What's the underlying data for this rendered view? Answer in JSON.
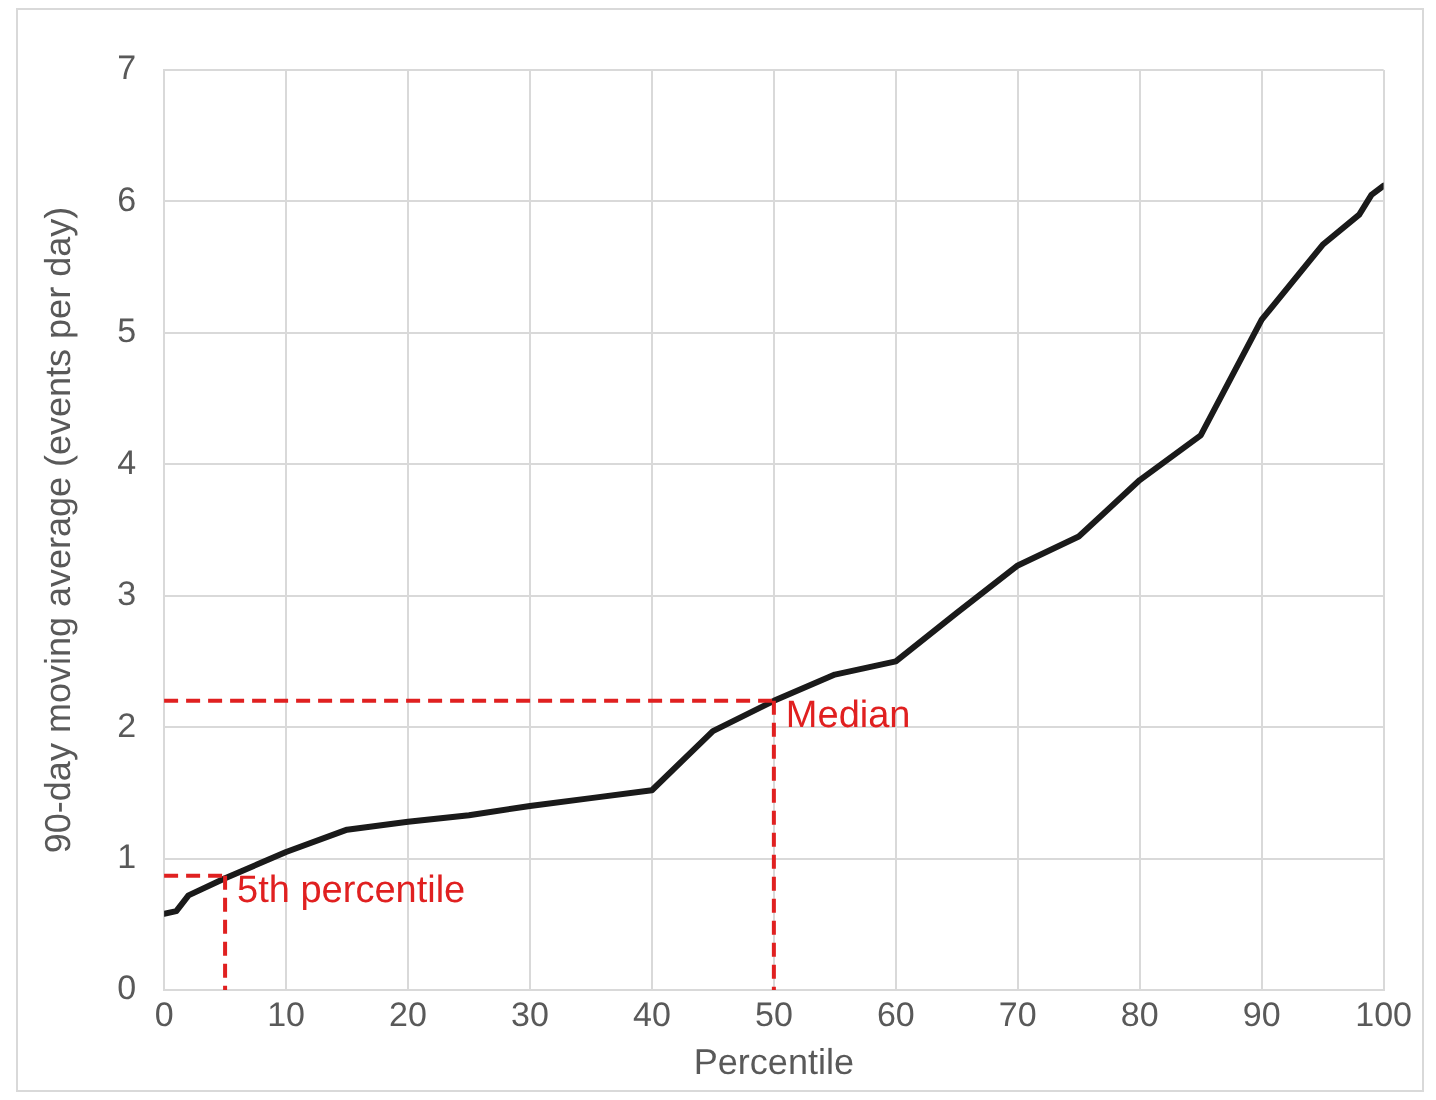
{
  "chart_data": {
    "type": "line",
    "xlabel": "Percentile",
    "ylabel": "90-day moving average (events per day)",
    "x": [
      0,
      1,
      2,
      5,
      10,
      15,
      20,
      25,
      30,
      35,
      40,
      45,
      50,
      55,
      60,
      65,
      70,
      75,
      80,
      85,
      90,
      95,
      98,
      99,
      100
    ],
    "series": [
      {
        "color": "#1a1a1a",
        "values": [
          0.58,
          0.6,
          0.72,
          0.85,
          1.05,
          1.22,
          1.28,
          1.33,
          1.4,
          1.46,
          1.52,
          1.97,
          2.2,
          2.4,
          2.5,
          2.87,
          3.23,
          3.45,
          3.88,
          4.22,
          5.1,
          5.67,
          5.9,
          6.05,
          6.12
        ]
      }
    ],
    "xlim": [
      0,
      100
    ],
    "xticks": [
      0,
      10,
      20,
      30,
      40,
      50,
      60,
      70,
      80,
      90,
      100
    ],
    "ylim": [
      0,
      7
    ],
    "yticks": [
      0,
      1,
      2,
      3,
      4,
      5,
      6,
      7
    ],
    "grid": true,
    "legend": false,
    "marker": "none",
    "line_style": "solid",
    "annotations": [
      {
        "text": "5th percentile",
        "x": 5,
        "y": 0.87
      },
      {
        "text": "Median",
        "x": 50,
        "y": 2.2
      }
    ]
  }
}
